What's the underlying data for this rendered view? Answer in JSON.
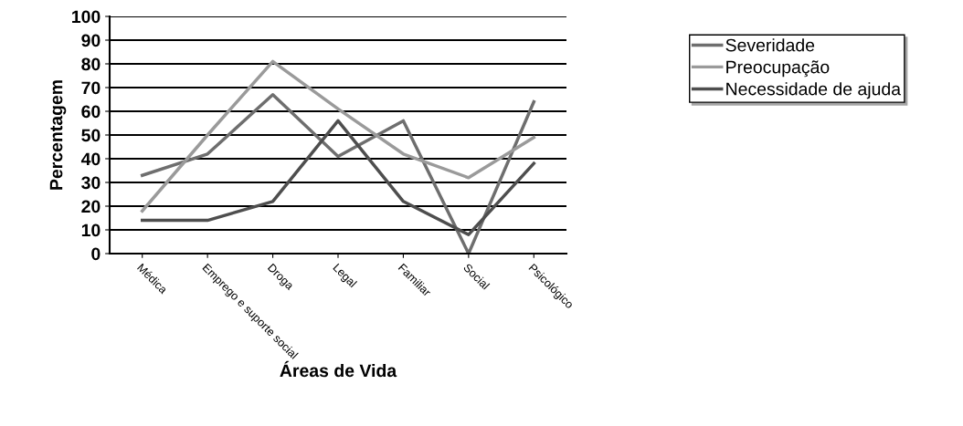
{
  "chart_data": {
    "type": "line",
    "xlabel": "Áreas de Vida",
    "ylabel": "Percentagem",
    "categories": [
      "Médica",
      "Emprego e suporte social",
      "Droga",
      "Legal",
      "Familiar",
      "Social",
      "Psicológico"
    ],
    "series": [
      {
        "name": "Severidade",
        "color": "#6e6e6e",
        "values": [
          33,
          42,
          67,
          41,
          56,
          0,
          64
        ]
      },
      {
        "name": "Preocupação",
        "color": "#9a9a9a",
        "values": [
          18,
          50,
          81,
          61,
          42,
          32,
          49
        ]
      },
      {
        "name": "Necessidade de ajuda",
        "color": "#4e4e4e",
        "values": [
          14,
          14,
          22,
          56,
          22,
          8,
          38
        ]
      }
    ],
    "ylim": [
      0,
      100
    ],
    "yticks": [
      0,
      10,
      20,
      30,
      40,
      50,
      60,
      70,
      80,
      90,
      100
    ],
    "grid": "y",
    "legend": "right",
    "marker": "none",
    "line_style": "solid"
  }
}
